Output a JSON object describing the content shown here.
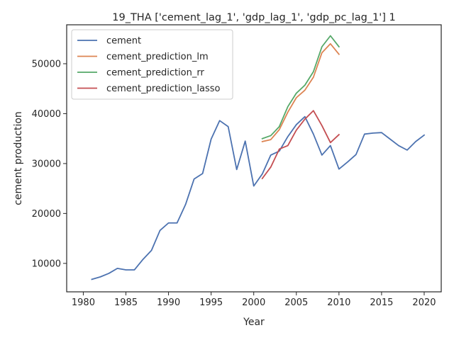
{
  "chart_data": {
    "type": "line",
    "title": "19_THA ['cement_lag_1', 'gdp_lag_1', 'gdp_pc_lag_1'] 1",
    "xlabel": "Year",
    "ylabel": "cement production",
    "xlim": [
      1978.05,
      2022.0
    ],
    "ylim": [
      4300,
      57800
    ],
    "xticks": [
      1980,
      1985,
      1990,
      1995,
      2000,
      2005,
      2010,
      2015,
      2020
    ],
    "yticks": [
      10000,
      20000,
      30000,
      40000,
      50000
    ],
    "grid": false,
    "legend_position": "top-left",
    "series": [
      {
        "name": "cement",
        "color": "#4c72b0",
        "x": [
          1981,
          1982,
          1983,
          1984,
          1985,
          1986,
          1987,
          1988,
          1989,
          1990,
          1991,
          1992,
          1993,
          1994,
          1995,
          1996,
          1997,
          1998,
          1999,
          2000,
          2001,
          2002,
          2003,
          2004,
          2005,
          2006,
          2007,
          2008,
          2009,
          2010,
          2011,
          2012,
          2013,
          2014,
          2015,
          2016,
          2017,
          2018,
          2019,
          2020
        ],
        "y": [
          6800,
          7300,
          8000,
          9000,
          8700,
          8700,
          10800,
          12600,
          16600,
          18100,
          18100,
          21800,
          26900,
          28000,
          34900,
          38600,
          37400,
          28800,
          34500,
          25500,
          27900,
          31700,
          32500,
          35400,
          37800,
          39400,
          35900,
          31700,
          33600,
          28900,
          30300,
          31800,
          35900,
          36100,
          36200,
          34900,
          33600,
          32700,
          34400,
          35700
        ]
      },
      {
        "name": "cement_prediction_lm",
        "color": "#dd8452",
        "x": [
          2001,
          2002,
          2003,
          2004,
          2005,
          2006,
          2007,
          2008,
          2009,
          2010
        ],
        "y": [
          34400,
          34800,
          36800,
          40300,
          43200,
          44700,
          47300,
          52200,
          54000,
          51900
        ]
      },
      {
        "name": "cement_prediction_rr",
        "color": "#55a868",
        "x": [
          2001,
          2002,
          2003,
          2004,
          2005,
          2006,
          2007,
          2008,
          2009,
          2010
        ],
        "y": [
          35000,
          35600,
          37400,
          41400,
          44100,
          45700,
          48400,
          53400,
          55600,
          53400
        ]
      },
      {
        "name": "cement_prediction_lasso",
        "color": "#c44e52",
        "x": [
          2001,
          2002,
          2003,
          2004,
          2005,
          2006,
          2007,
          2008,
          2009,
          2010
        ],
        "y": [
          27000,
          29300,
          32900,
          33600,
          36700,
          38900,
          40600,
          37600,
          34200,
          35800
        ]
      }
    ]
  }
}
